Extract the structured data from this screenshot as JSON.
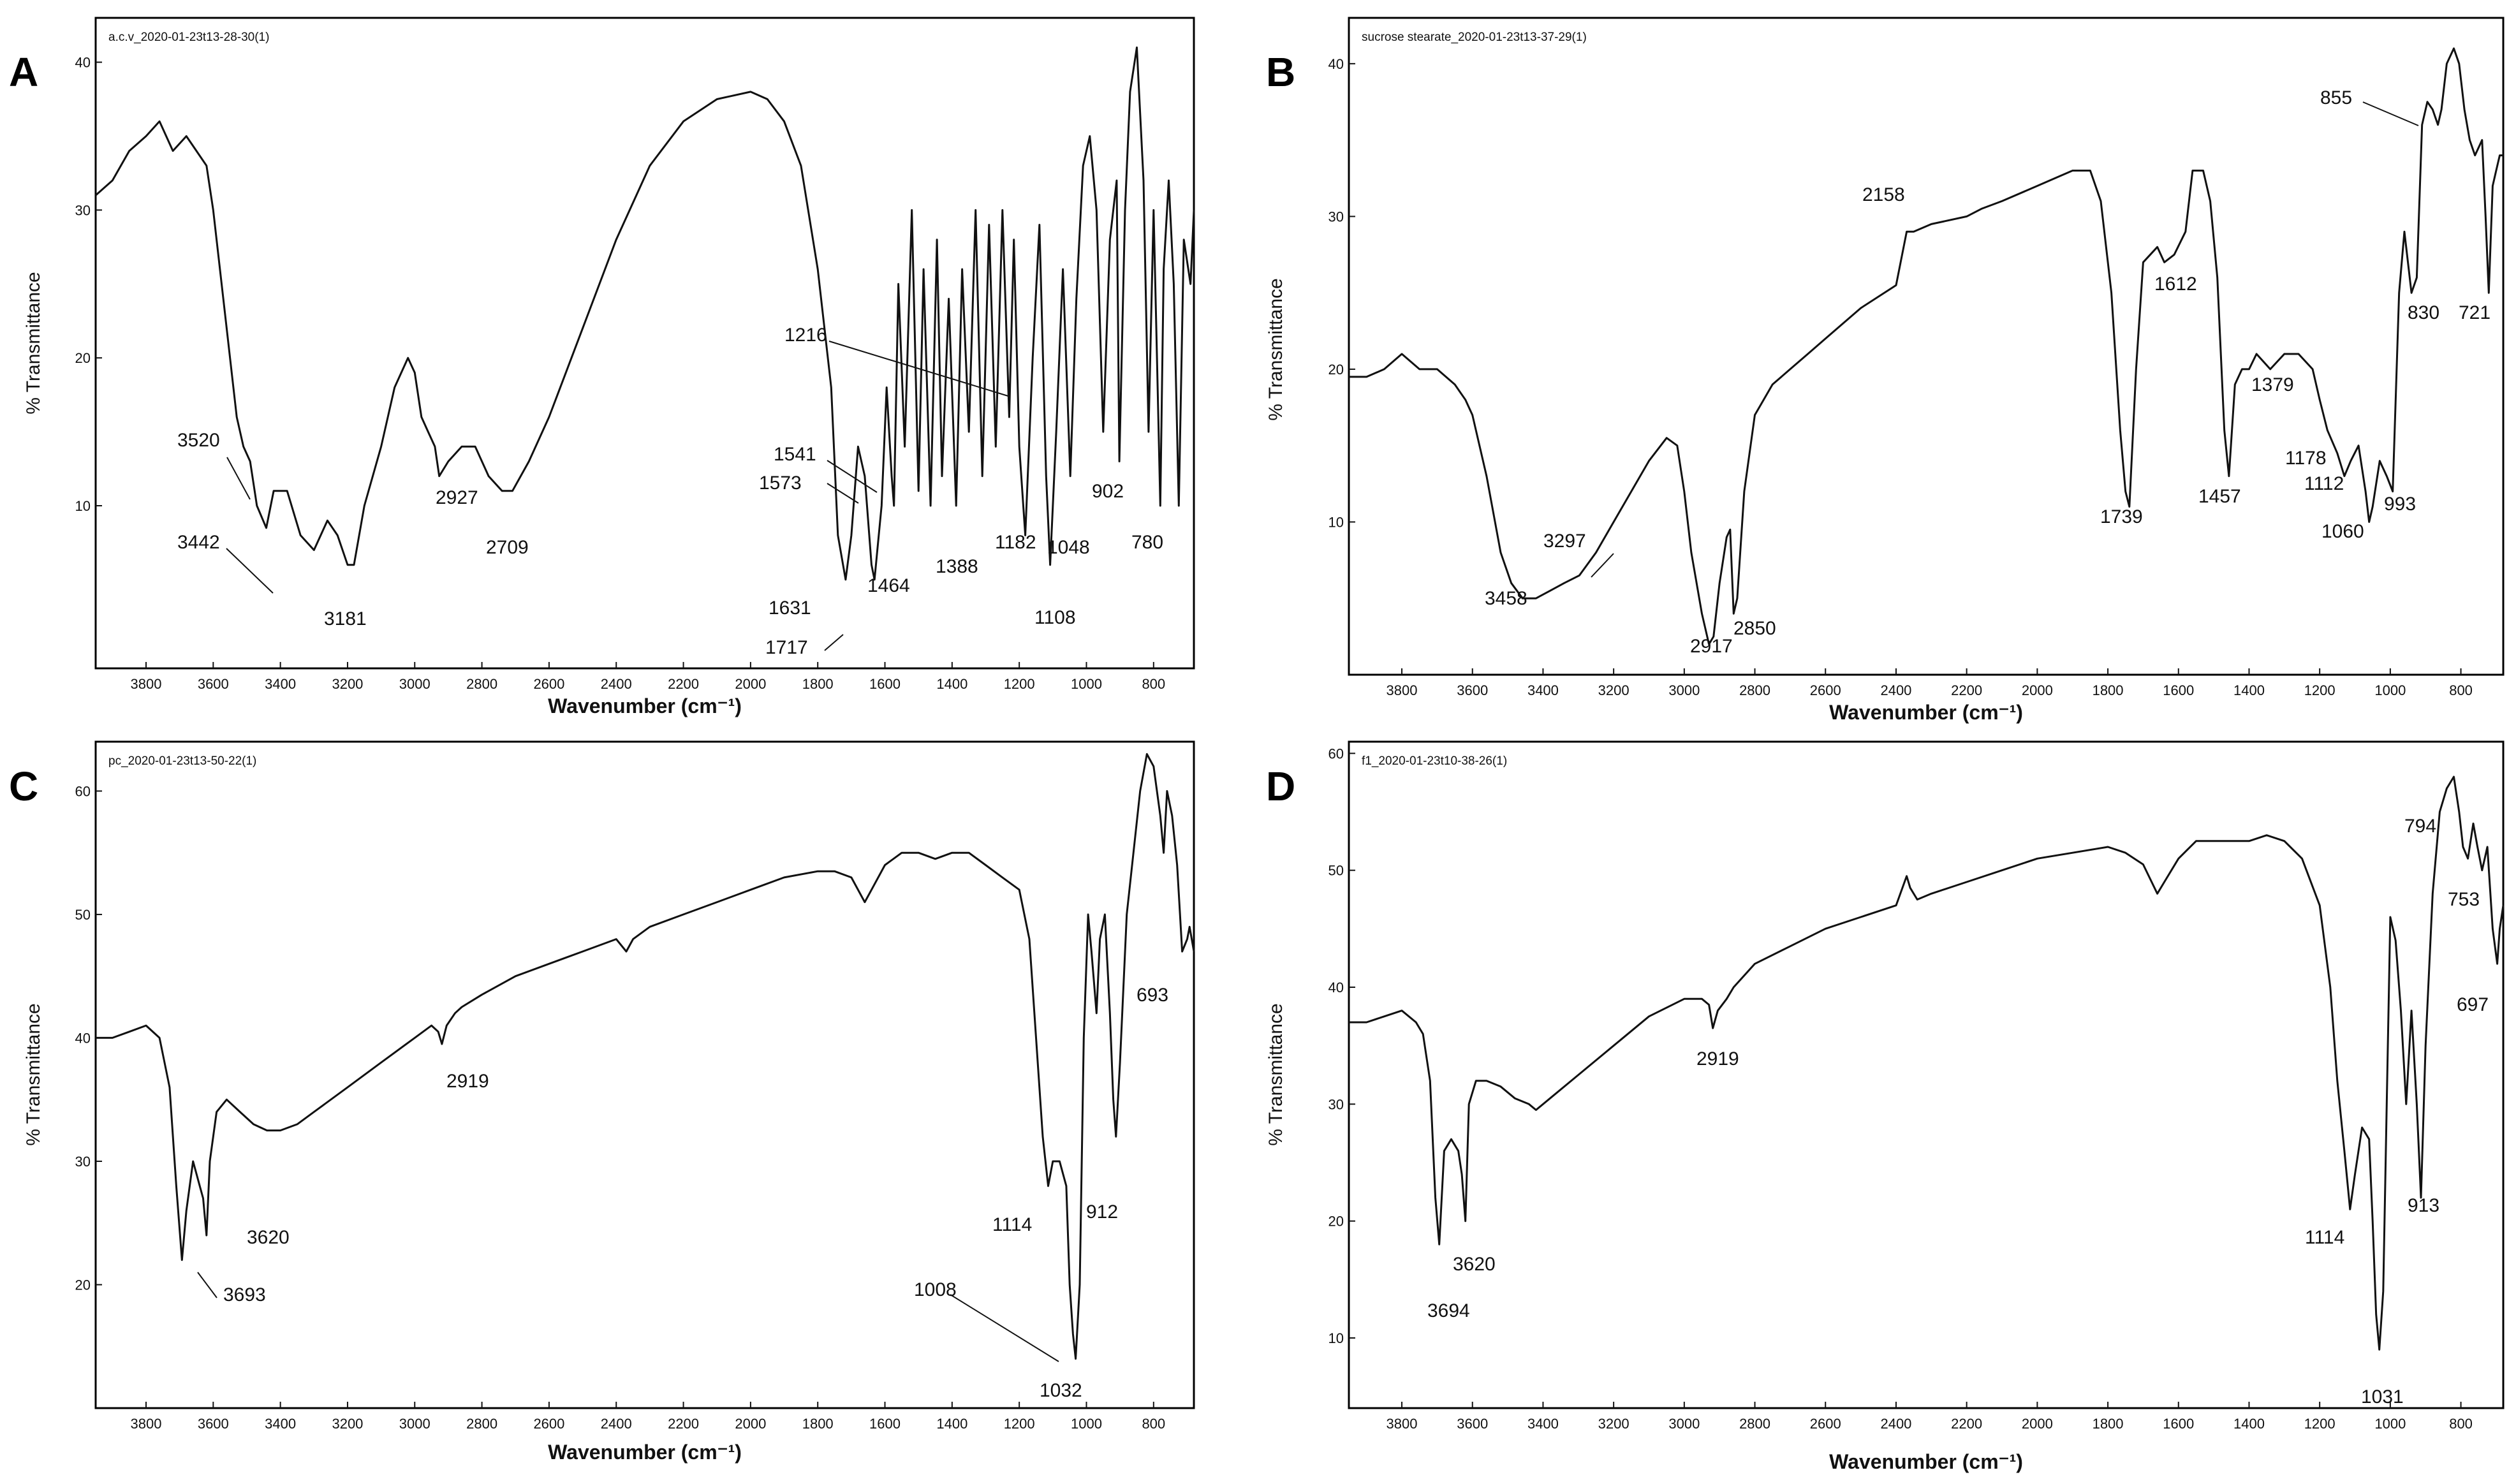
{
  "chart_data": [
    {
      "type": "line",
      "panel": "A",
      "file_label": "a.c.v_2020-01-23t13-28-30(1)",
      "xlabel": "Wavenumber (cm⁻¹)",
      "ylabel": "% Transmittance",
      "xlim": [
        3950,
        680
      ],
      "ylim": [
        -1,
        43
      ],
      "xticks": [
        3800,
        3600,
        3400,
        3200,
        3000,
        2800,
        2600,
        2400,
        2200,
        2000,
        1800,
        1600,
        1400,
        1200,
        1000,
        800
      ],
      "yticks": [
        10,
        20,
        30,
        40
      ],
      "series": [
        {
          "name": "a.c.v",
          "x": [
            3950,
            3900,
            3850,
            3800,
            3760,
            3720,
            3680,
            3650,
            3620,
            3600,
            3560,
            3530,
            3510,
            3490,
            3470,
            3442,
            3420,
            3380,
            3340,
            3300,
            3260,
            3230,
            3200,
            3181,
            3150,
            3100,
            3060,
            3020,
            3000,
            2980,
            2960,
            2940,
            2927,
            2900,
            2860,
            2820,
            2780,
            2740,
            2709,
            2660,
            2600,
            2500,
            2400,
            2300,
            2200,
            2100,
            2000,
            1950,
            1900,
            1850,
            1800,
            1760,
            1740,
            1717,
            1700,
            1680,
            1660,
            1640,
            1631,
            1610,
            1595,
            1580,
            1573,
            1560,
            1541,
            1520,
            1500,
            1485,
            1464,
            1445,
            1430,
            1410,
            1388,
            1370,
            1350,
            1330,
            1310,
            1290,
            1270,
            1250,
            1230,
            1216,
            1200,
            1182,
            1160,
            1140,
            1120,
            1108,
            1090,
            1070,
            1048,
            1030,
            1010,
            990,
            970,
            950,
            930,
            910,
            902,
            885,
            870,
            850,
            830,
            815,
            800,
            790,
            780,
            770,
            755,
            740,
            725,
            710,
            690,
            680
          ],
          "y": [
            31,
            32,
            34,
            35,
            36,
            34,
            35,
            34,
            33,
            30,
            22,
            16,
            14,
            13,
            10,
            8.5,
            11,
            11,
            8,
            7,
            9,
            8,
            6,
            6,
            10,
            14,
            18,
            20,
            19,
            16,
            15,
            14,
            12,
            13,
            14,
            14,
            12,
            11,
            11,
            13,
            16,
            22,
            28,
            33,
            36,
            37.5,
            38,
            37.5,
            36,
            33,
            26,
            18,
            8,
            5,
            8,
            14,
            12,
            6,
            5,
            10,
            18,
            12,
            10,
            25,
            14,
            30,
            11,
            26,
            10,
            28,
            12,
            24,
            10,
            26,
            15,
            30,
            12,
            29,
            14,
            30,
            16,
            28,
            14,
            8,
            20,
            29,
            12,
            6,
            15,
            26,
            12,
            24,
            33,
            35,
            30,
            15,
            28,
            32,
            13,
            30,
            38,
            41,
            32,
            15,
            30,
            20,
            10,
            26,
            32,
            25,
            10,
            28,
            25,
            30
          ]
        }
      ],
      "annotations": [
        "3520",
        "3442",
        "3181",
        "2927",
        "2709",
        "1216",
        "1541",
        "1573",
        "1464",
        "1388",
        "1182",
        "1048",
        "902",
        "780",
        "1631",
        "1717",
        "1108"
      ]
    },
    {
      "type": "line",
      "panel": "B",
      "file_label": "sucrose stearate_2020-01-23t13-37-29(1)",
      "xlabel": "Wavenumber (cm⁻¹)",
      "ylabel": "% Transmittance",
      "xlim": [
        3950,
        680
      ],
      "ylim": [
        0,
        43
      ],
      "xticks": [
        3800,
        3600,
        3400,
        3200,
        3000,
        2800,
        2600,
        2400,
        2200,
        2000,
        1800,
        1600,
        1400,
        1200,
        1000,
        800
      ],
      "yticks": [
        10,
        20,
        30,
        40
      ],
      "series": [
        {
          "name": "sucrose stearate",
          "x": [
            3950,
            3900,
            3850,
            3800,
            3750,
            3700,
            3650,
            3620,
            3600,
            3560,
            3520,
            3490,
            3458,
            3420,
            3380,
            3340,
            3297,
            3250,
            3200,
            3150,
            3100,
            3050,
            3020,
            3000,
            2980,
            2950,
            2930,
            2917,
            2900,
            2880,
            2870,
            2860,
            2850,
            2830,
            2800,
            2750,
            2700,
            2650,
            2600,
            2500,
            2400,
            2370,
            2350,
            2300,
            2200,
            2158,
            2100,
            2000,
            1950,
            1900,
            1850,
            1820,
            1790,
            1765,
            1750,
            1739,
            1720,
            1700,
            1660,
            1640,
            1612,
            1580,
            1560,
            1530,
            1510,
            1490,
            1470,
            1457,
            1440,
            1420,
            1400,
            1379,
            1340,
            1300,
            1260,
            1220,
            1200,
            1178,
            1150,
            1130,
            1112,
            1090,
            1070,
            1060,
            1050,
            1030,
            1010,
            993,
            975,
            960,
            940,
            925,
            910,
            895,
            880,
            865,
            855,
            840,
            820,
            805,
            790,
            775,
            760,
            740,
            730,
            721,
            710,
            700,
            690,
            680
          ],
          "y": [
            19.5,
            19.5,
            20,
            21,
            20,
            20,
            19,
            18,
            17,
            13,
            8,
            6,
            5,
            5,
            5.5,
            6,
            6.5,
            8,
            10,
            12,
            14,
            15.5,
            15,
            12,
            8,
            4,
            2,
            2.5,
            6,
            9,
            9.5,
            4,
            5,
            12,
            17,
            19,
            20,
            21,
            22,
            24,
            25.5,
            29,
            29,
            29.5,
            30,
            30.5,
            31,
            32,
            32.5,
            33,
            33,
            31,
            25,
            16,
            12,
            11,
            20,
            27,
            28,
            27,
            27.5,
            29,
            33,
            33,
            31,
            26,
            16,
            13,
            19,
            20,
            20,
            21,
            20,
            21,
            21,
            20,
            18,
            16,
            14.5,
            13,
            14,
            15,
            12,
            10,
            11,
            14,
            13,
            12,
            25,
            29,
            25,
            26,
            36,
            37.5,
            37,
            36,
            37,
            40,
            41,
            40,
            37,
            35,
            34,
            35,
            30,
            25,
            32,
            33,
            34,
            34
          ]
        }
      ],
      "annotations": [
        "2158",
        "3297",
        "3458",
        "2917",
        "2850",
        "1739",
        "1612",
        "1457",
        "1379",
        "1178",
        "1112",
        "1060",
        "993",
        "830",
        "721",
        "855"
      ]
    },
    {
      "type": "line",
      "panel": "C",
      "file_label": "pc_2020-01-23t13-50-22(1)",
      "xlabel": "Wavenumber (cm⁻¹)",
      "ylabel": "% Transmittance",
      "xlim": [
        3950,
        680
      ],
      "ylim": [
        10,
        64
      ],
      "xticks": [
        3800,
        3600,
        3400,
        3200,
        3000,
        2800,
        2600,
        2400,
        2200,
        2000,
        1800,
        1600,
        1400,
        1200,
        1000,
        800
      ],
      "yticks": [
        20,
        30,
        40,
        50,
        60
      ],
      "series": [
        {
          "name": "pc",
          "x": [
            3950,
            3900,
            3850,
            3800,
            3760,
            3730,
            3710,
            3693,
            3680,
            3660,
            3640,
            3630,
            3620,
            3610,
            3590,
            3560,
            3520,
            3480,
            3440,
            3400,
            3350,
            3300,
            3200,
            3100,
            3000,
            2950,
            2930,
            2919,
            2905,
            2880,
            2860,
            2800,
            2700,
            2600,
            2500,
            2400,
            2370,
            2350,
            2300,
            2200,
            2100,
            2000,
            1900,
            1800,
            1750,
            1700,
            1660,
            1640,
            1600,
            1550,
            1500,
            1450,
            1400,
            1350,
            1300,
            1250,
            1200,
            1170,
            1150,
            1130,
            1114,
            1100,
            1080,
            1060,
            1050,
            1040,
            1032,
            1020,
            1008,
            995,
            985,
            970,
            960,
            945,
            930,
            920,
            912,
            900,
            880,
            860,
            840,
            820,
            800,
            780,
            770,
            760,
            745,
            730,
            715,
            700,
            693,
            680
          ],
          "y": [
            40,
            40,
            40.5,
            41,
            40,
            36,
            28,
            22,
            26,
            30,
            28,
            27,
            24,
            30,
            34,
            35,
            34,
            33,
            32.5,
            32.5,
            33,
            34,
            36,
            38,
            40,
            41,
            40.5,
            39.5,
            41,
            42,
            42.5,
            43.5,
            45,
            46,
            47,
            48,
            47,
            48,
            49,
            50,
            51,
            52,
            53,
            53.5,
            53.5,
            53,
            51,
            52,
            54,
            55,
            55,
            54.5,
            55,
            55,
            54,
            53,
            52,
            48,
            40,
            32,
            28,
            30,
            30,
            28,
            20,
            16,
            14,
            20,
            40,
            50,
            47,
            42,
            48,
            50,
            42,
            35,
            32,
            38,
            50,
            55,
            60,
            63,
            62,
            58,
            55,
            60,
            58,
            54,
            47,
            48,
            49,
            47
          ]
        }
      ],
      "annotations": [
        "2919",
        "693",
        "1114",
        "912",
        "3620",
        "3693",
        "1008",
        "1032"
      ]
    },
    {
      "type": "line",
      "panel": "D",
      "file_label": "f1_2020-01-23t10-38-26(1)",
      "xlabel": "Wavenumber (cm⁻¹)",
      "ylabel": "% Transmittance",
      "xlim": [
        3950,
        680
      ],
      "ylim": [
        4,
        61
      ],
      "xticks": [
        3800,
        3600,
        3400,
        3200,
        3000,
        2800,
        2600,
        2400,
        2200,
        2000,
        1800,
        1600,
        1400,
        1200,
        1000,
        800
      ],
      "yticks": [
        10,
        20,
        30,
        40,
        50,
        60
      ],
      "series": [
        {
          "name": "f1",
          "x": [
            3950,
            3900,
            3850,
            3800,
            3760,
            3740,
            3720,
            3705,
            3694,
            3680,
            3660,
            3640,
            3630,
            3620,
            3610,
            3590,
            3560,
            3520,
            3480,
            3440,
            3420,
            3380,
            3300,
            3200,
            3100,
            3000,
            2950,
            2930,
            2919,
            2905,
            2880,
            2860,
            2800,
            2700,
            2600,
            2500,
            2400,
            2370,
            2360,
            2340,
            2300,
            2200,
            2100,
            2000,
            1900,
            1800,
            1750,
            1700,
            1660,
            1640,
            1600,
            1550,
            1500,
            1450,
            1400,
            1350,
            1300,
            1250,
            1200,
            1170,
            1150,
            1130,
            1114,
            1100,
            1080,
            1060,
            1050,
            1040,
            1031,
            1020,
            1010,
            1000,
            985,
            970,
            955,
            940,
            925,
            913,
            900,
            880,
            860,
            840,
            820,
            805,
            794,
            780,
            765,
            753,
            740,
            725,
            710,
            697,
            690,
            680
          ],
          "y": [
            37,
            37,
            37.5,
            38,
            37,
            36,
            32,
            22,
            18,
            26,
            27,
            26,
            24,
            20,
            30,
            32,
            32,
            31.5,
            30.5,
            30,
            29.5,
            30.5,
            32.5,
            35,
            37.5,
            39,
            39,
            38.5,
            36.5,
            38,
            39,
            40,
            42,
            43.5,
            45,
            46,
            47,
            49.5,
            48.5,
            47.5,
            48,
            49,
            50,
            51,
            51.5,
            52,
            51.5,
            50.5,
            48,
            49,
            51,
            52.5,
            52.5,
            52.5,
            52.5,
            53,
            52.5,
            51,
            47,
            40,
            32,
            26,
            21,
            24,
            28,
            27,
            20,
            12,
            9,
            14,
            30,
            46,
            44,
            38,
            30,
            38,
            30,
            22,
            35,
            48,
            55,
            57,
            58,
            55,
            52,
            51,
            54,
            52,
            50,
            52,
            45,
            42,
            45,
            47
          ]
        }
      ],
      "annotations": [
        "2919",
        "794",
        "753",
        "697",
        "3694",
        "3620",
        "1114",
        "913",
        "1031"
      ]
    }
  ]
}
